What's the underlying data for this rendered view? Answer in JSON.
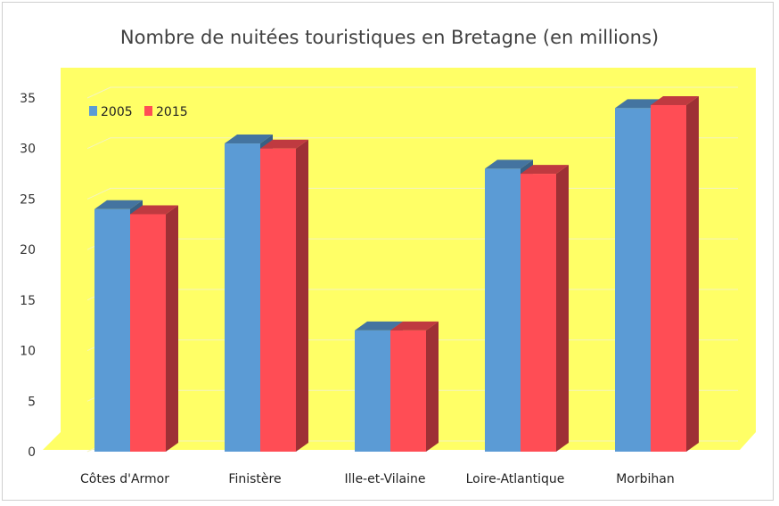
{
  "chart_data": {
    "type": "bar",
    "title": "Nombre de nuitées touristiques  en Bretagne (en millions)",
    "categories": [
      "Côtes d'Armor",
      "Finistère",
      "Ille-et-Vilaine",
      "Loire-Atlantique",
      "Morbihan"
    ],
    "series": [
      {
        "name": "2005",
        "values": [
          24,
          30.5,
          12,
          28,
          34
        ],
        "color": "#5b9bd5"
      },
      {
        "name": "2015",
        "values": [
          23.5,
          30,
          12,
          27.5,
          34.3
        ],
        "color": "#ff4d55"
      }
    ],
    "yticks": [
      0,
      5,
      10,
      15,
      20,
      25,
      30,
      35
    ],
    "ylim": [
      0,
      35
    ],
    "grid": true,
    "legend": "top-left",
    "plot_background": "#ffff66",
    "style": "3d-clustered-column"
  }
}
